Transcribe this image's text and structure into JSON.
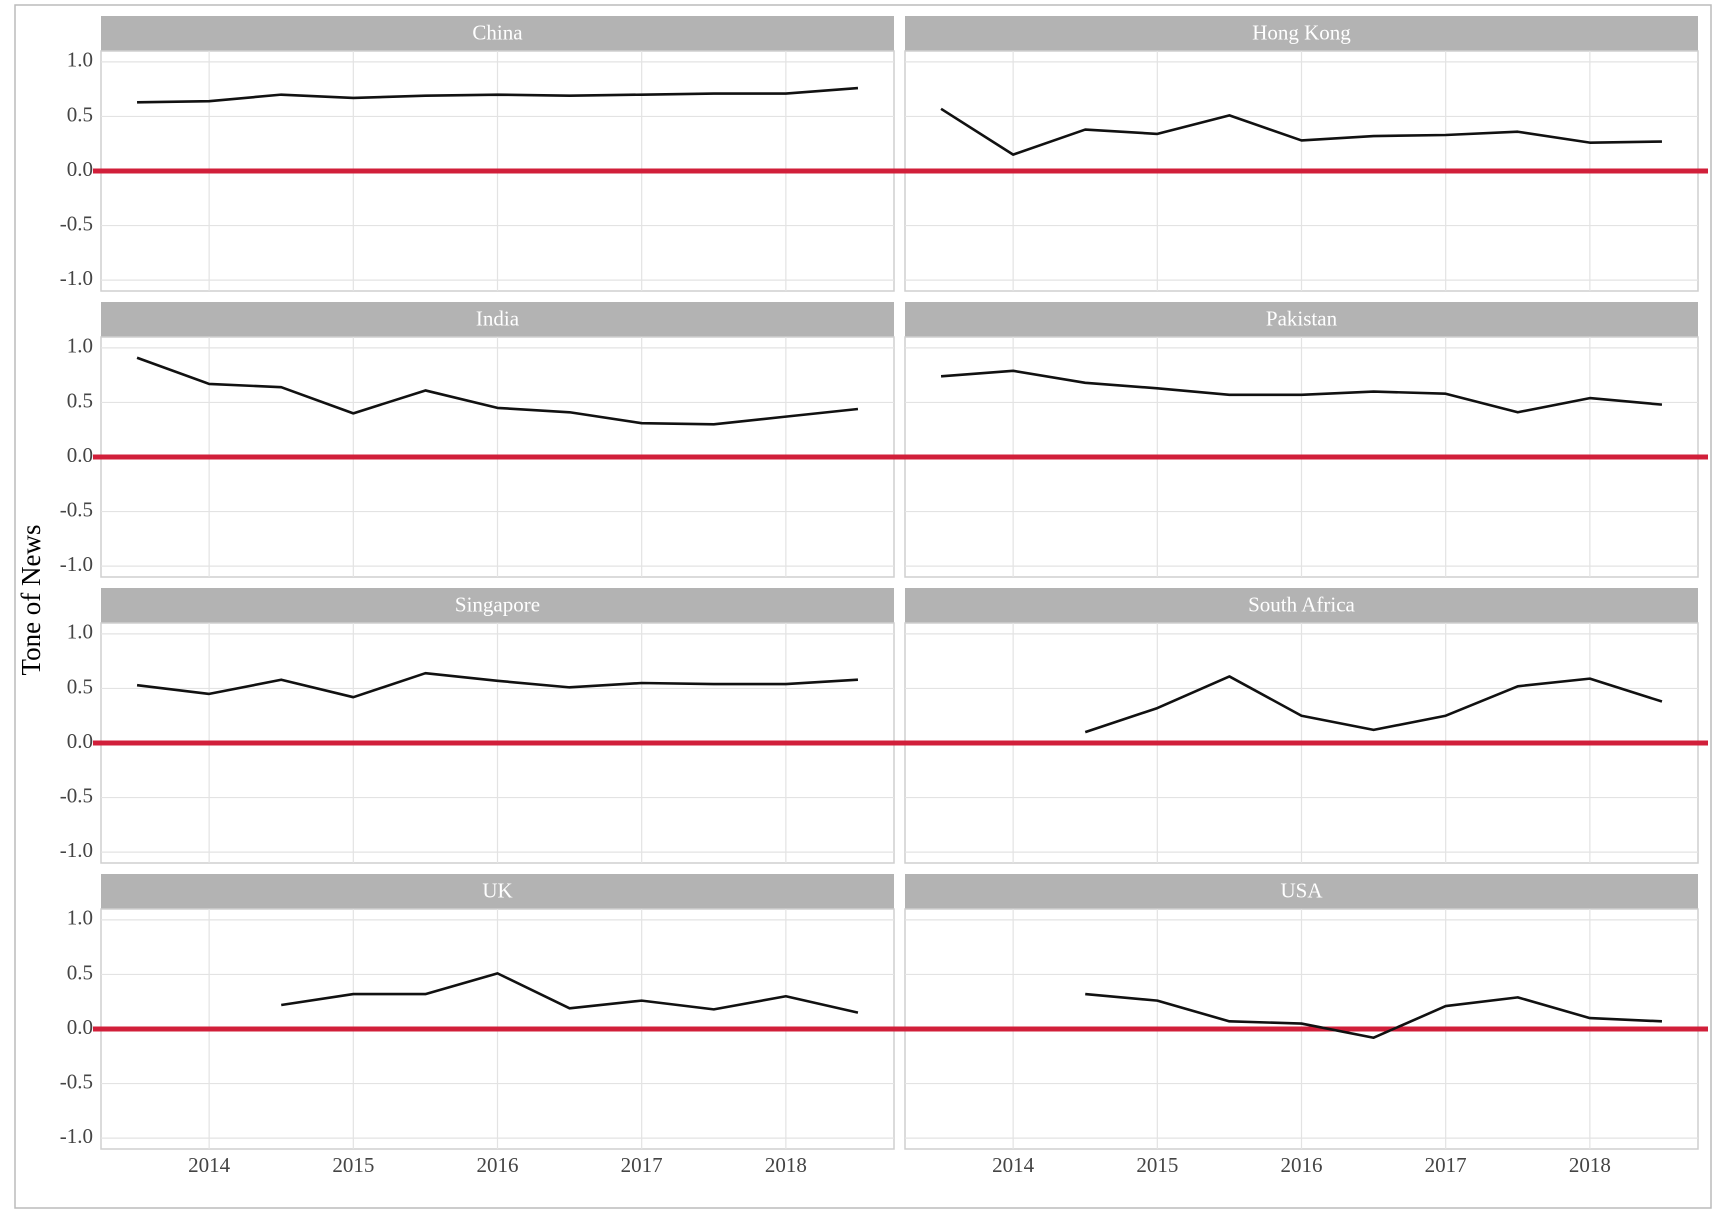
{
  "ylabel": "Tone of News",
  "chart_data": [
    {
      "type": "line",
      "title": "China",
      "x": [
        2013.5,
        2014,
        2014.5,
        2015,
        2015.5,
        2016,
        2016.5,
        2017,
        2017.5,
        2018,
        2018.5
      ],
      "values": [
        0.63,
        0.64,
        0.7,
        0.67,
        0.69,
        0.7,
        0.69,
        0.7,
        0.71,
        0.71,
        0.76
      ],
      "color": "#111111",
      "hline": 0,
      "hline_color": "#d11f3a",
      "xlim": [
        2013.25,
        2018.75
      ],
      "xticks": [
        2014,
        2015,
        2016,
        2017,
        2018
      ],
      "ylim": [
        -1.1,
        1.1
      ],
      "yticks": [
        {
          "value": -1,
          "label": "-1.0"
        },
        -0.5,
        {
          "value": 0,
          "label": "0.0"
        },
        0.5,
        {
          "value": 1,
          "label": "1.0"
        }
      ],
      "grid": true
    },
    {
      "type": "line",
      "title": "Hong Kong",
      "x": [
        2013.5,
        2014,
        2014.5,
        2015,
        2015.5,
        2016,
        2016.5,
        2017,
        2017.5,
        2018,
        2018.5
      ],
      "values": [
        0.57,
        0.15,
        0.38,
        0.34,
        0.51,
        0.28,
        0.32,
        0.33,
        0.36,
        0.26,
        0.27
      ],
      "color": "#111111",
      "hline": 0,
      "hline_color": "#d11f3a",
      "xlim": [
        2013.25,
        2018.75
      ],
      "xticks": [
        2014,
        2015,
        2016,
        2017,
        2018
      ],
      "ylim": [
        -1.1,
        1.1
      ],
      "yticks": [
        {
          "value": -1,
          "label": "-1.0"
        },
        -0.5,
        {
          "value": 0,
          "label": "0.0"
        },
        0.5,
        {
          "value": 1,
          "label": "1.0"
        }
      ],
      "grid": true
    },
    {
      "type": "line",
      "title": "India",
      "x": [
        2013.5,
        2014,
        2014.5,
        2015,
        2015.5,
        2016,
        2016.5,
        2017,
        2017.5,
        2018,
        2018.5
      ],
      "values": [
        0.91,
        0.67,
        0.64,
        0.4,
        0.61,
        0.45,
        0.41,
        0.31,
        0.3,
        0.37,
        0.44
      ],
      "color": "#111111",
      "hline": 0,
      "hline_color": "#d11f3a",
      "xlim": [
        2013.25,
        2018.75
      ],
      "xticks": [
        2014,
        2015,
        2016,
        2017,
        2018
      ],
      "ylim": [
        -1.1,
        1.1
      ],
      "yticks": [
        {
          "value": -1,
          "label": "-1.0"
        },
        -0.5,
        {
          "value": 0,
          "label": "0.0"
        },
        0.5,
        {
          "value": 1,
          "label": "1.0"
        }
      ],
      "grid": true
    },
    {
      "type": "line",
      "title": "Pakistan",
      "x": [
        2013.5,
        2014,
        2014.5,
        2015,
        2015.5,
        2016,
        2016.5,
        2017,
        2017.5,
        2018,
        2018.5
      ],
      "values": [
        0.74,
        0.79,
        0.68,
        0.63,
        0.57,
        0.57,
        0.6,
        0.58,
        0.41,
        0.54,
        0.48
      ],
      "color": "#111111",
      "hline": 0,
      "hline_color": "#d11f3a",
      "xlim": [
        2013.25,
        2018.75
      ],
      "xticks": [
        2014,
        2015,
        2016,
        2017,
        2018
      ],
      "ylim": [
        -1.1,
        1.1
      ],
      "yticks": [
        {
          "value": -1,
          "label": "-1.0"
        },
        -0.5,
        {
          "value": 0,
          "label": "0.0"
        },
        0.5,
        {
          "value": 1,
          "label": "1.0"
        }
      ],
      "grid": true
    },
    {
      "type": "line",
      "title": "Singapore",
      "x": [
        2013.5,
        2014,
        2014.5,
        2015,
        2015.5,
        2016,
        2016.5,
        2017,
        2017.5,
        2018,
        2018.5
      ],
      "values": [
        0.53,
        0.45,
        0.58,
        0.42,
        0.64,
        0.57,
        0.51,
        0.55,
        0.54,
        0.54,
        0.58
      ],
      "color": "#111111",
      "hline": 0,
      "hline_color": "#d11f3a",
      "xlim": [
        2013.25,
        2018.75
      ],
      "xticks": [
        2014,
        2015,
        2016,
        2017,
        2018
      ],
      "ylim": [
        -1.1,
        1.1
      ],
      "yticks": [
        {
          "value": -1,
          "label": "-1.0"
        },
        -0.5,
        {
          "value": 0,
          "label": "0.0"
        },
        0.5,
        {
          "value": 1,
          "label": "1.0"
        }
      ],
      "grid": true
    },
    {
      "type": "line",
      "title": "South Africa",
      "x": [
        2013.5,
        2014,
        2014.5,
        2015,
        2015.5,
        2016,
        2016.5,
        2017,
        2017.5,
        2018,
        2018.5
      ],
      "values": [
        null,
        null,
        0.1,
        0.32,
        0.61,
        0.25,
        0.12,
        0.25,
        0.52,
        0.59,
        0.38
      ],
      "color": "#111111",
      "hline": 0,
      "hline_color": "#d11f3a",
      "xlim": [
        2013.25,
        2018.75
      ],
      "xticks": [
        2014,
        2015,
        2016,
        2017,
        2018
      ],
      "ylim": [
        -1.1,
        1.1
      ],
      "yticks": [
        {
          "value": -1,
          "label": "-1.0"
        },
        -0.5,
        {
          "value": 0,
          "label": "0.0"
        },
        0.5,
        {
          "value": 1,
          "label": "1.0"
        }
      ],
      "grid": true
    },
    {
      "type": "line",
      "title": "UK",
      "x": [
        2013.5,
        2014,
        2014.5,
        2015,
        2015.5,
        2016,
        2016.5,
        2017,
        2017.5,
        2018,
        2018.5
      ],
      "values": [
        null,
        null,
        0.22,
        0.32,
        0.32,
        0.51,
        0.19,
        0.26,
        0.18,
        0.3,
        0.15
      ],
      "color": "#111111",
      "hline": 0,
      "hline_color": "#d11f3a",
      "xlim": [
        2013.25,
        2018.75
      ],
      "xticks": [
        2014,
        2015,
        2016,
        2017,
        2018
      ],
      "ylim": [
        -1.1,
        1.1
      ],
      "yticks": [
        {
          "value": -1,
          "label": "-1.0"
        },
        -0.5,
        {
          "value": 0,
          "label": "0.0"
        },
        0.5,
        {
          "value": 1,
          "label": "1.0"
        }
      ],
      "grid": true
    },
    {
      "type": "line",
      "title": "USA",
      "x": [
        2013.5,
        2014,
        2014.5,
        2015,
        2015.5,
        2016,
        2016.5,
        2017,
        2017.5,
        2018,
        2018.5
      ],
      "values": [
        null,
        null,
        0.32,
        0.26,
        0.07,
        0.05,
        -0.08,
        0.21,
        0.29,
        0.1,
        0.07
      ],
      "color": "#111111",
      "hline": 0,
      "hline_color": "#d11f3a",
      "xlim": [
        2013.25,
        2018.75
      ],
      "xticks": [
        2014,
        2015,
        2016,
        2017,
        2018
      ],
      "ylim": [
        -1.1,
        1.1
      ],
      "yticks": [
        {
          "value": -1,
          "label": "-1.0"
        },
        -0.5,
        {
          "value": 0,
          "label": "0.0"
        },
        0.5,
        {
          "value": 1,
          "label": "1.0"
        }
      ],
      "grid": true
    }
  ]
}
